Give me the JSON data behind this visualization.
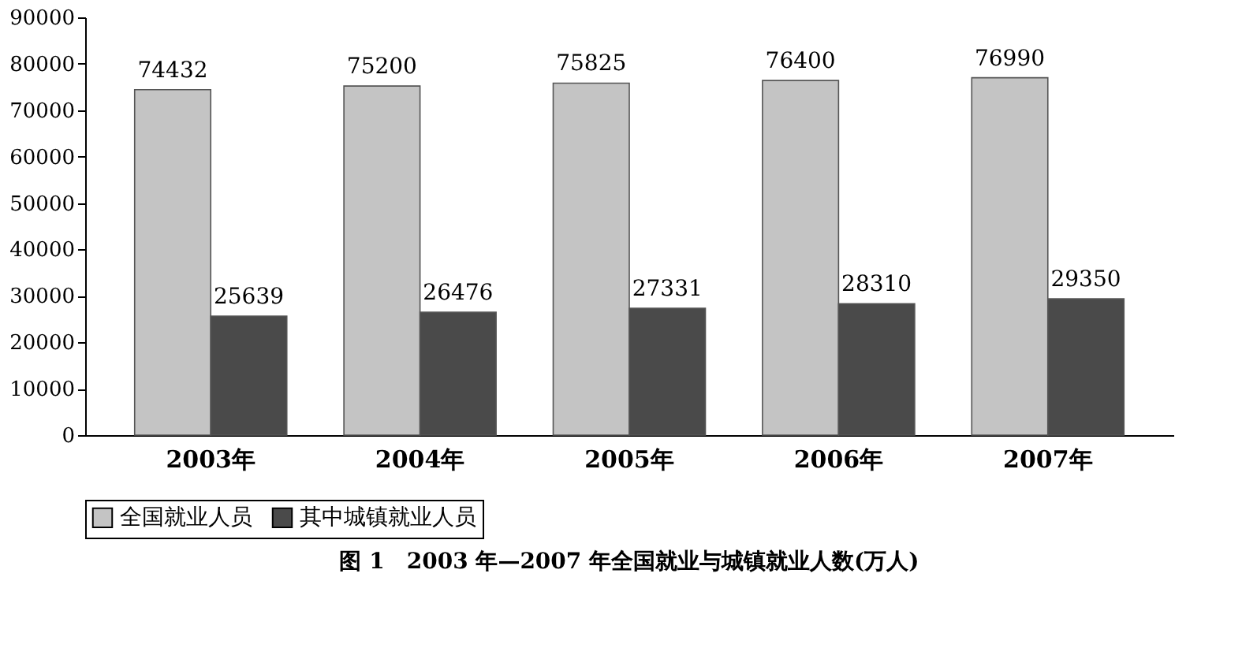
{
  "chart_data": {
    "type": "bar",
    "title": "图 1　2003 年—2007 年全国就业与城镇就业人数(万人)",
    "categories": [
      "2003年",
      "2004年",
      "2005年",
      "2006年",
      "2007年"
    ],
    "series": [
      {
        "name": "全国就业人员",
        "color": "#c4c4c4",
        "values": [
          74432,
          75200,
          75825,
          76400,
          76990
        ]
      },
      {
        "name": "其中城镇就业人员",
        "color": "#4a4a4a",
        "values": [
          25639,
          26476,
          27331,
          28310,
          29350
        ]
      }
    ],
    "ylim": [
      0,
      90000
    ],
    "yticks": [
      0,
      10000,
      20000,
      30000,
      40000,
      50000,
      60000,
      70000,
      80000,
      90000
    ],
    "data_labels": true,
    "legend": "bottom",
    "grid": false
  }
}
